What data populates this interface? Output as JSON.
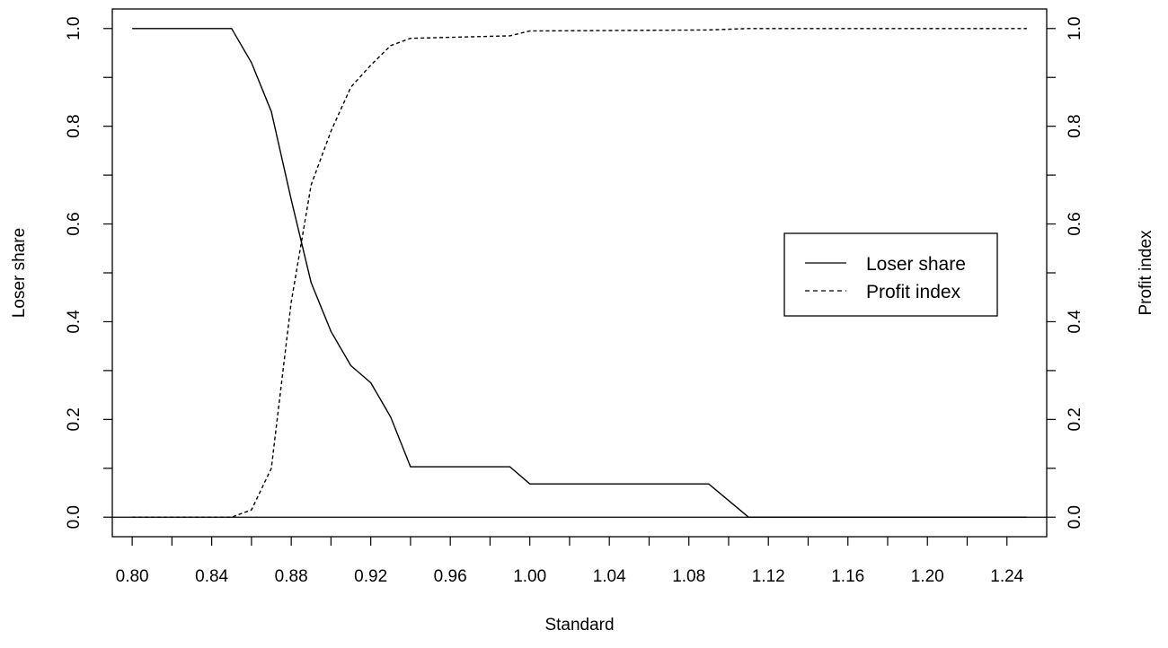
{
  "chart_data": {
    "type": "line",
    "title": "",
    "xlabel": "Standard",
    "ylabel": "Loser share",
    "y2label": "Profit index",
    "xlim": [
      0.79,
      1.26
    ],
    "ylim": [
      -0.04,
      1.04
    ],
    "y2lim": [
      -0.04,
      1.04
    ],
    "xticks": [
      0.8,
      0.82,
      0.84,
      0.86,
      0.88,
      0.9,
      0.92,
      0.94,
      0.96,
      0.98,
      1.0,
      1.02,
      1.04,
      1.06,
      1.08,
      1.1,
      1.12,
      1.14,
      1.16,
      1.18,
      1.2,
      1.22,
      1.24
    ],
    "xtick_labels": [
      "0.80",
      "0.84",
      "0.88",
      "0.92",
      "0.96",
      "1.00",
      "1.04",
      "1.08",
      "1.12",
      "1.16",
      "1.20",
      "1.24"
    ],
    "xtick_label_values": [
      0.8,
      0.84,
      0.88,
      0.92,
      0.96,
      1.0,
      1.04,
      1.08,
      1.12,
      1.16,
      1.2,
      1.24
    ],
    "yticks": [
      0.0,
      0.1,
      0.2,
      0.3,
      0.4,
      0.5,
      0.6,
      0.7,
      0.8,
      0.9,
      1.0
    ],
    "ytick_labels": [
      "0.0",
      "0.2",
      "0.4",
      "0.6",
      "0.8",
      "1.0"
    ],
    "ytick_label_values": [
      0.0,
      0.2,
      0.4,
      0.6,
      0.8,
      1.0
    ],
    "hline": 0.0,
    "legend_position": "right",
    "series": [
      {
        "name": "Loser share",
        "axis": "left",
        "style": "solid",
        "x": [
          0.8,
          0.85,
          0.86,
          0.87,
          0.88,
          0.89,
          0.9,
          0.91,
          0.92,
          0.93,
          0.94,
          0.99,
          1.0,
          1.09,
          1.11,
          1.25
        ],
        "y": [
          1.0,
          1.0,
          0.93,
          0.83,
          0.65,
          0.48,
          0.38,
          0.31,
          0.275,
          0.205,
          0.103,
          0.103,
          0.068,
          0.068,
          0.0,
          0.0
        ]
      },
      {
        "name": "Profit index",
        "axis": "right",
        "style": "dashed",
        "x": [
          0.8,
          0.85,
          0.86,
          0.87,
          0.88,
          0.89,
          0.9,
          0.91,
          0.92,
          0.93,
          0.94,
          0.99,
          1.0,
          1.09,
          1.11,
          1.25
        ],
        "y": [
          0.0,
          0.0,
          0.015,
          0.1,
          0.44,
          0.68,
          0.79,
          0.88,
          0.925,
          0.965,
          0.98,
          0.985,
          0.995,
          0.997,
          1.0,
          1.0
        ]
      }
    ]
  }
}
